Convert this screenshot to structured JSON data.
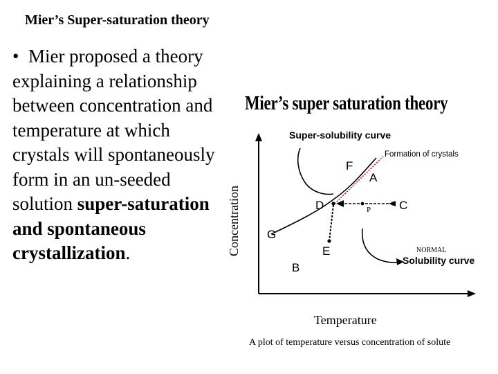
{
  "slide": {
    "title": "Mier’s Super-saturation theory",
    "bullet_symbol": "•",
    "body_plain": "Mier proposed a theory explaining a relationship between concentration and temperature at which crystals will spontaneously form in an un-seeded solution",
    "body_bold": "super-saturation and spontaneous crystallization",
    "body_end": "."
  },
  "figure": {
    "title": "Mier’s super saturation theory",
    "y_axis_label": "Concentration",
    "x_axis_label": "Temperature",
    "caption": "A plot of temperature versus concentration of solute",
    "super_solubility_label": "Super-solubility curve",
    "crystal_formation_label": "Formation of crystals",
    "normal_label": "NORMAL",
    "solubility_label": "Solubility curve",
    "points": {
      "A": "A",
      "B": "B",
      "C": "C",
      "D": "D",
      "E": "E",
      "F": "F",
      "G": "G",
      "P": "P"
    },
    "colors": {
      "axis": "#000000",
      "curves": "#000000",
      "crystal_line": "#cc0000",
      "crystal_label": "#000000"
    }
  }
}
